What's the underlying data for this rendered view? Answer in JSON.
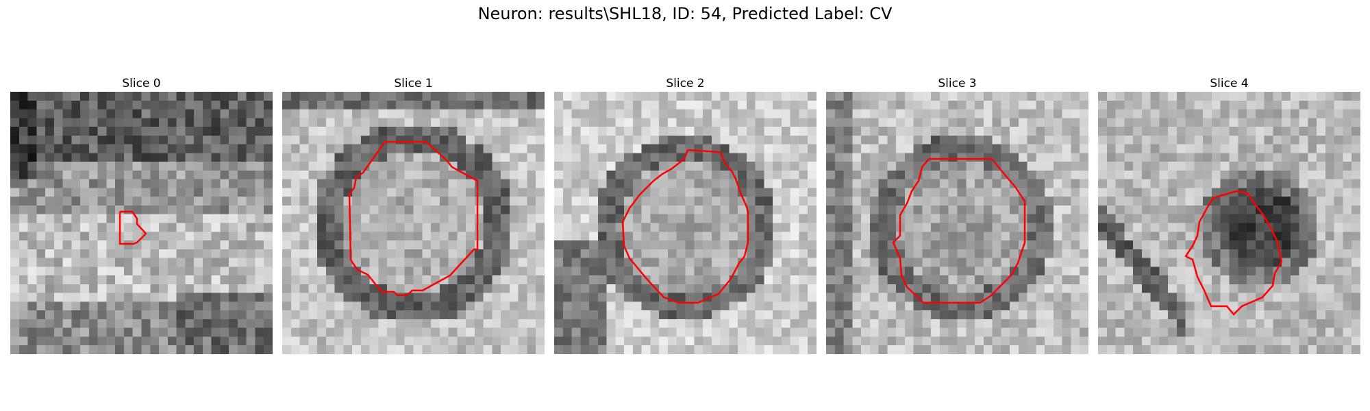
{
  "figure": {
    "title": "Neuron: results\\SHL18, ID: 54, Predicted Label: CV"
  },
  "slices": [
    {
      "label": "Slice 0",
      "contour_color": "#ff0000"
    },
    {
      "label": "Slice 1",
      "contour_color": "#ff0000"
    },
    {
      "label": "Slice 2",
      "contour_color": "#ff0000"
    },
    {
      "label": "Slice 3",
      "contour_color": "#ff0000"
    },
    {
      "label": "Slice 4",
      "contour_color": "#ff0000"
    }
  ]
}
